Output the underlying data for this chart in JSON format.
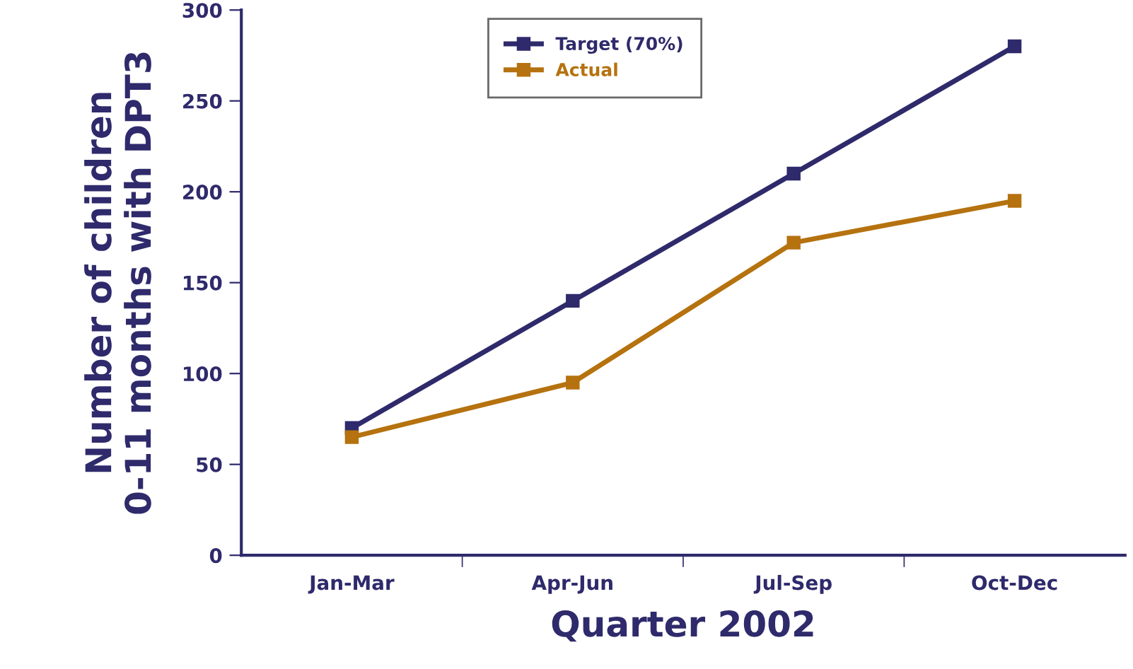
{
  "chart_data": {
    "type": "line",
    "xlabel": "Quarter 2002",
    "ylabel": "Number of children\n0-11 months with DPT3",
    "categories": [
      "Jan-Mar",
      "Apr-Jun",
      "Jul-Sep",
      "Oct-Dec"
    ],
    "series": [
      {
        "name": "Target (70%)",
        "color": "#2e2a6b",
        "values": [
          70,
          140,
          210,
          280
        ]
      },
      {
        "name": "Actual",
        "color": "#b5720f",
        "values": [
          65,
          95,
          172,
          195
        ]
      }
    ],
    "ylim": [
      0,
      300
    ],
    "yticks": [
      0,
      50,
      100,
      150,
      200,
      250,
      300
    ],
    "marker": "square",
    "line_style": "solid",
    "grid": false,
    "legend": "top"
  }
}
